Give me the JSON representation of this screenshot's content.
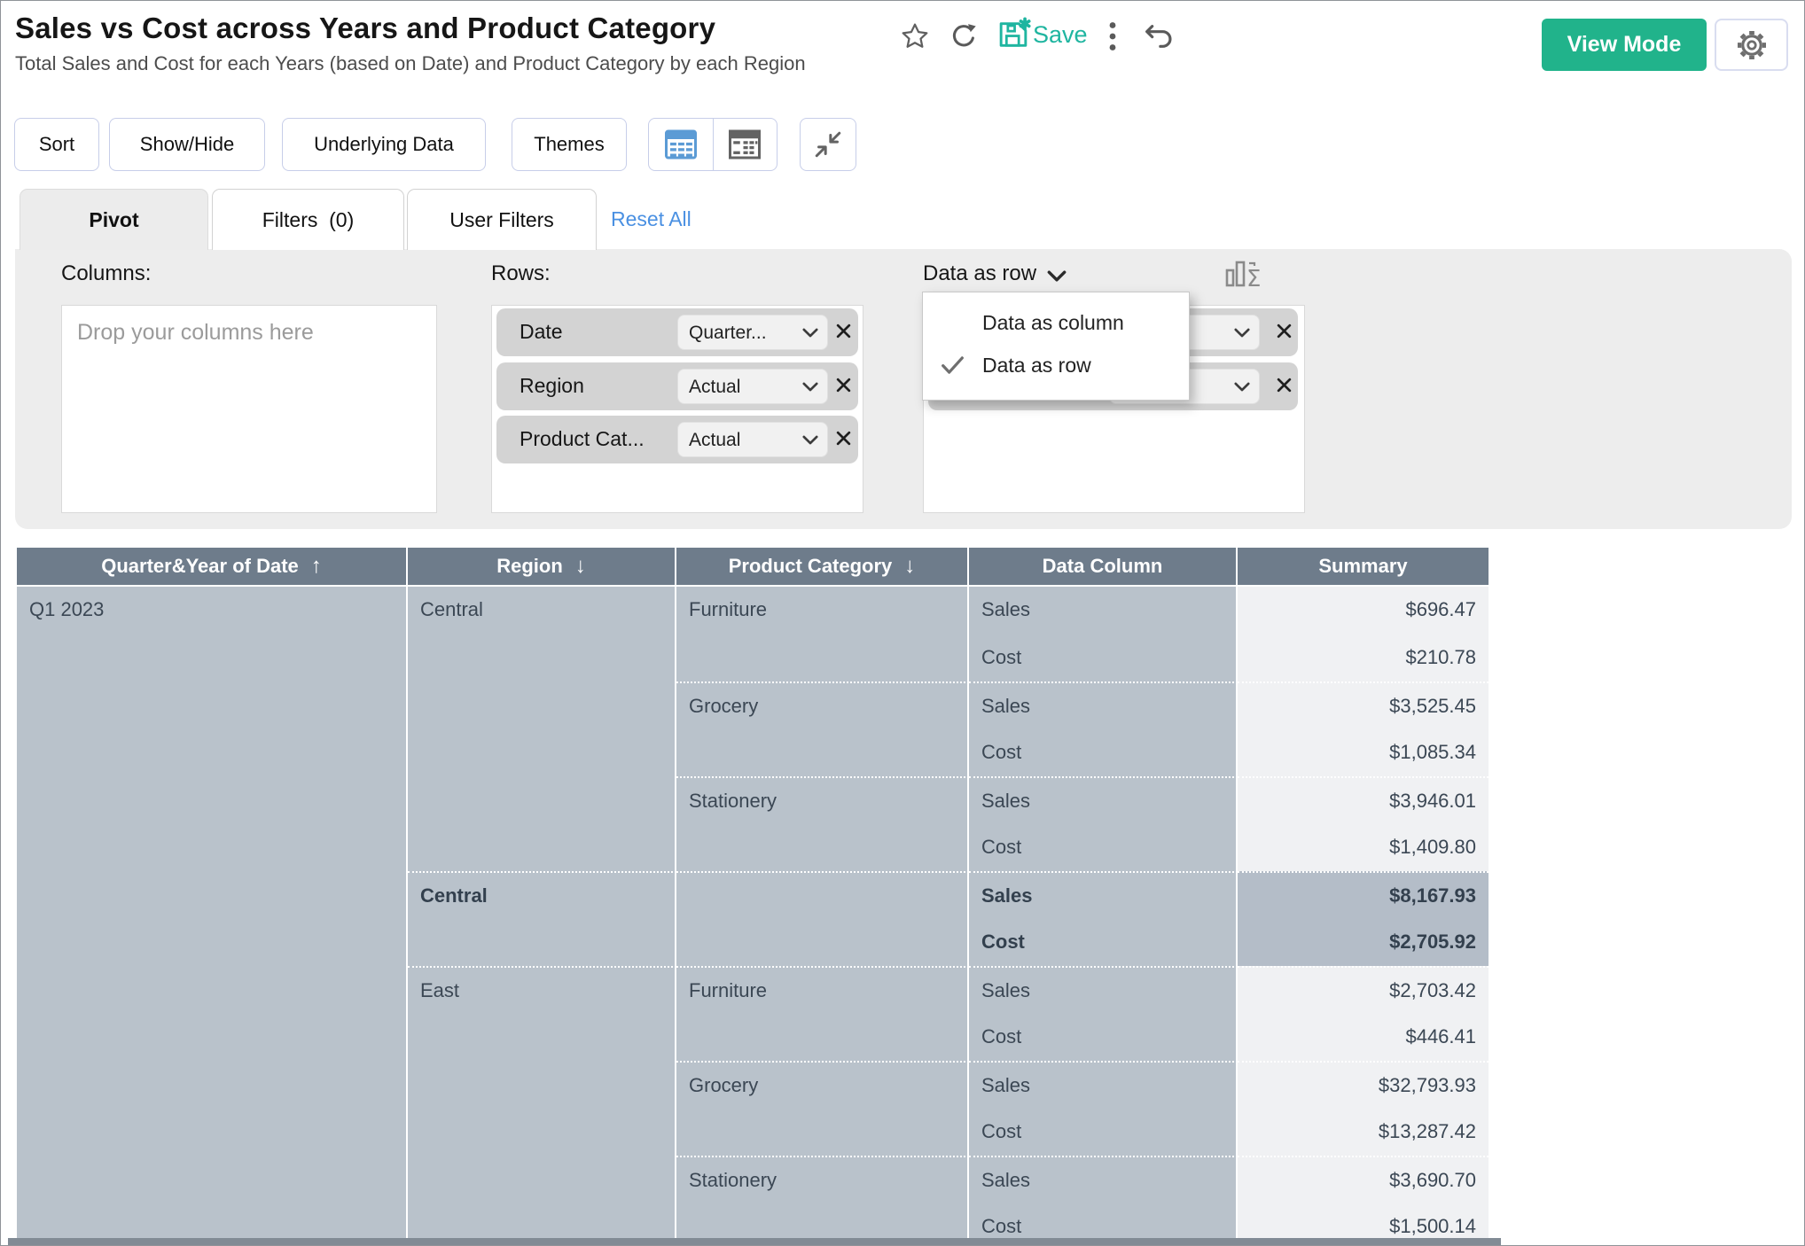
{
  "header": {
    "title": "Sales vs Cost across Years and Product Category",
    "subtitle": "Total Sales and Cost for each Years (based on Date) and Product Category by each Region",
    "save_label": "Save",
    "view_mode_label": "View Mode"
  },
  "toolbar": {
    "sort": "Sort",
    "show_hide": "Show/Hide",
    "underlying_data": "Underlying Data",
    "themes": "Themes"
  },
  "tabs": {
    "pivot": "Pivot",
    "filters": "Filters  (0)",
    "user_filters": "User Filters",
    "reset_all": "Reset All"
  },
  "pivot_panel": {
    "columns_label": "Columns:",
    "columns_placeholder": "Drop your columns here",
    "rows_label": "Rows:",
    "row_fields": [
      {
        "field": "Date",
        "option": "Quarter..."
      },
      {
        "field": "Region",
        "option": "Actual"
      },
      {
        "field": "Product Cat...",
        "option": "Actual"
      }
    ],
    "data_label": "Data as row",
    "data_menu": [
      {
        "label": "Data as column",
        "checked": false
      },
      {
        "label": "Data as row",
        "checked": true
      }
    ]
  },
  "pivot_table": {
    "headers": [
      {
        "label": "Quarter&Year of Date",
        "sort": "asc",
        "sort_glyph": "↑"
      },
      {
        "label": "Region",
        "sort": "desc",
        "sort_glyph": "↓"
      },
      {
        "label": "Product Category",
        "sort": "desc",
        "sort_glyph": "↓"
      },
      {
        "label": "Data Column",
        "sort": "",
        "sort_glyph": ""
      },
      {
        "label": "Summary",
        "sort": "",
        "sort_glyph": ""
      }
    ],
    "cells": [
      {
        "col": 1,
        "row": 1,
        "span": 14,
        "text": "Q1 2023",
        "kind": "dim"
      },
      {
        "col": 2,
        "row": 1,
        "span": 6,
        "text": "Central",
        "kind": "dim"
      },
      {
        "col": 2,
        "row": 7,
        "span": 2,
        "text": "Central",
        "kind": "dim bold dot"
      },
      {
        "col": 2,
        "row": 9,
        "span": 6,
        "text": "East",
        "kind": "dim dot"
      },
      {
        "col": 3,
        "row": 1,
        "span": 2,
        "text": "Furniture",
        "kind": "dim"
      },
      {
        "col": 3,
        "row": 3,
        "span": 2,
        "text": "Grocery",
        "kind": "dim dot"
      },
      {
        "col": 3,
        "row": 5,
        "span": 2,
        "text": "Stationery",
        "kind": "dim dot"
      },
      {
        "col": 3,
        "row": 7,
        "span": 2,
        "text": "",
        "kind": "dim dot"
      },
      {
        "col": 3,
        "row": 9,
        "span": 2,
        "text": "Furniture",
        "kind": "dim dot"
      },
      {
        "col": 3,
        "row": 11,
        "span": 2,
        "text": "Grocery",
        "kind": "dim dot"
      },
      {
        "col": 3,
        "row": 13,
        "span": 2,
        "text": "Stationery",
        "kind": "dim dot"
      },
      {
        "col": 4,
        "row": 1,
        "span": 1,
        "text": "Sales",
        "kind": "dim"
      },
      {
        "col": 4,
        "row": 2,
        "span": 1,
        "text": "Cost",
        "kind": "dim"
      },
      {
        "col": 4,
        "row": 3,
        "span": 1,
        "text": "Sales",
        "kind": "dim dot"
      },
      {
        "col": 4,
        "row": 4,
        "span": 1,
        "text": "Cost",
        "kind": "dim"
      },
      {
        "col": 4,
        "row": 5,
        "span": 1,
        "text": "Sales",
        "kind": "dim dot"
      },
      {
        "col": 4,
        "row": 6,
        "span": 1,
        "text": "Cost",
        "kind": "dim"
      },
      {
        "col": 4,
        "row": 7,
        "span": 1,
        "text": "Sales",
        "kind": "dim bold dot"
      },
      {
        "col": 4,
        "row": 8,
        "span": 1,
        "text": "Cost",
        "kind": "dim bold"
      },
      {
        "col": 4,
        "row": 9,
        "span": 1,
        "text": "Sales",
        "kind": "dim dot"
      },
      {
        "col": 4,
        "row": 10,
        "span": 1,
        "text": "Cost",
        "kind": "dim"
      },
      {
        "col": 4,
        "row": 11,
        "span": 1,
        "text": "Sales",
        "kind": "dim dot"
      },
      {
        "col": 4,
        "row": 12,
        "span": 1,
        "text": "Cost",
        "kind": "dim"
      },
      {
        "col": 4,
        "row": 13,
        "span": 1,
        "text": "Sales",
        "kind": "dim dot"
      },
      {
        "col": 4,
        "row": 14,
        "span": 1,
        "text": "Cost",
        "kind": "dim"
      },
      {
        "col": 5,
        "row": 1,
        "span": 1,
        "text": "$696.47",
        "kind": "sum"
      },
      {
        "col": 5,
        "row": 2,
        "span": 1,
        "text": "$210.78",
        "kind": "sum"
      },
      {
        "col": 5,
        "row": 3,
        "span": 1,
        "text": "$3,525.45",
        "kind": "sum dot"
      },
      {
        "col": 5,
        "row": 4,
        "span": 1,
        "text": "$1,085.34",
        "kind": "sum"
      },
      {
        "col": 5,
        "row": 5,
        "span": 1,
        "text": "$3,946.01",
        "kind": "sum dot"
      },
      {
        "col": 5,
        "row": 6,
        "span": 1,
        "text": "$1,409.80",
        "kind": "sum"
      },
      {
        "col": 5,
        "row": 7,
        "span": 1,
        "text": "$8,167.93",
        "kind": "sub dot"
      },
      {
        "col": 5,
        "row": 8,
        "span": 1,
        "text": "$2,705.92",
        "kind": "sub"
      },
      {
        "col": 5,
        "row": 9,
        "span": 1,
        "text": "$2,703.42",
        "kind": "sum dot"
      },
      {
        "col": 5,
        "row": 10,
        "span": 1,
        "text": "$446.41",
        "kind": "sum"
      },
      {
        "col": 5,
        "row": 11,
        "span": 1,
        "text": "$32,793.93",
        "kind": "sum dot"
      },
      {
        "col": 5,
        "row": 12,
        "span": 1,
        "text": "$13,287.42",
        "kind": "sum"
      },
      {
        "col": 5,
        "row": 13,
        "span": 1,
        "text": "$3,690.70",
        "kind": "sum dot"
      },
      {
        "col": 5,
        "row": 14,
        "span": 1,
        "text": "$1,500.14",
        "kind": "sum"
      }
    ]
  },
  "colors": {
    "accent_teal": "#1FB5A0",
    "view_mode_green": "#21B38B",
    "link_blue": "#4A90E2",
    "table_header_bg": "#6E7C8B",
    "dimension_cell_bg": "#B9C2CB",
    "summary_cell_bg": "#F0F1F3",
    "subtotal_cell_bg": "#B4BDC8",
    "table_icon_blue": "#5B9BD5"
  },
  "icons": {
    "favorite": "star-outline",
    "refresh": "circular-arrow",
    "save": "floppy-with-asterisk",
    "more": "kebab-dots",
    "undo": "curved-left-arrow",
    "settings": "gear",
    "summarize": "bars-sigma"
  }
}
